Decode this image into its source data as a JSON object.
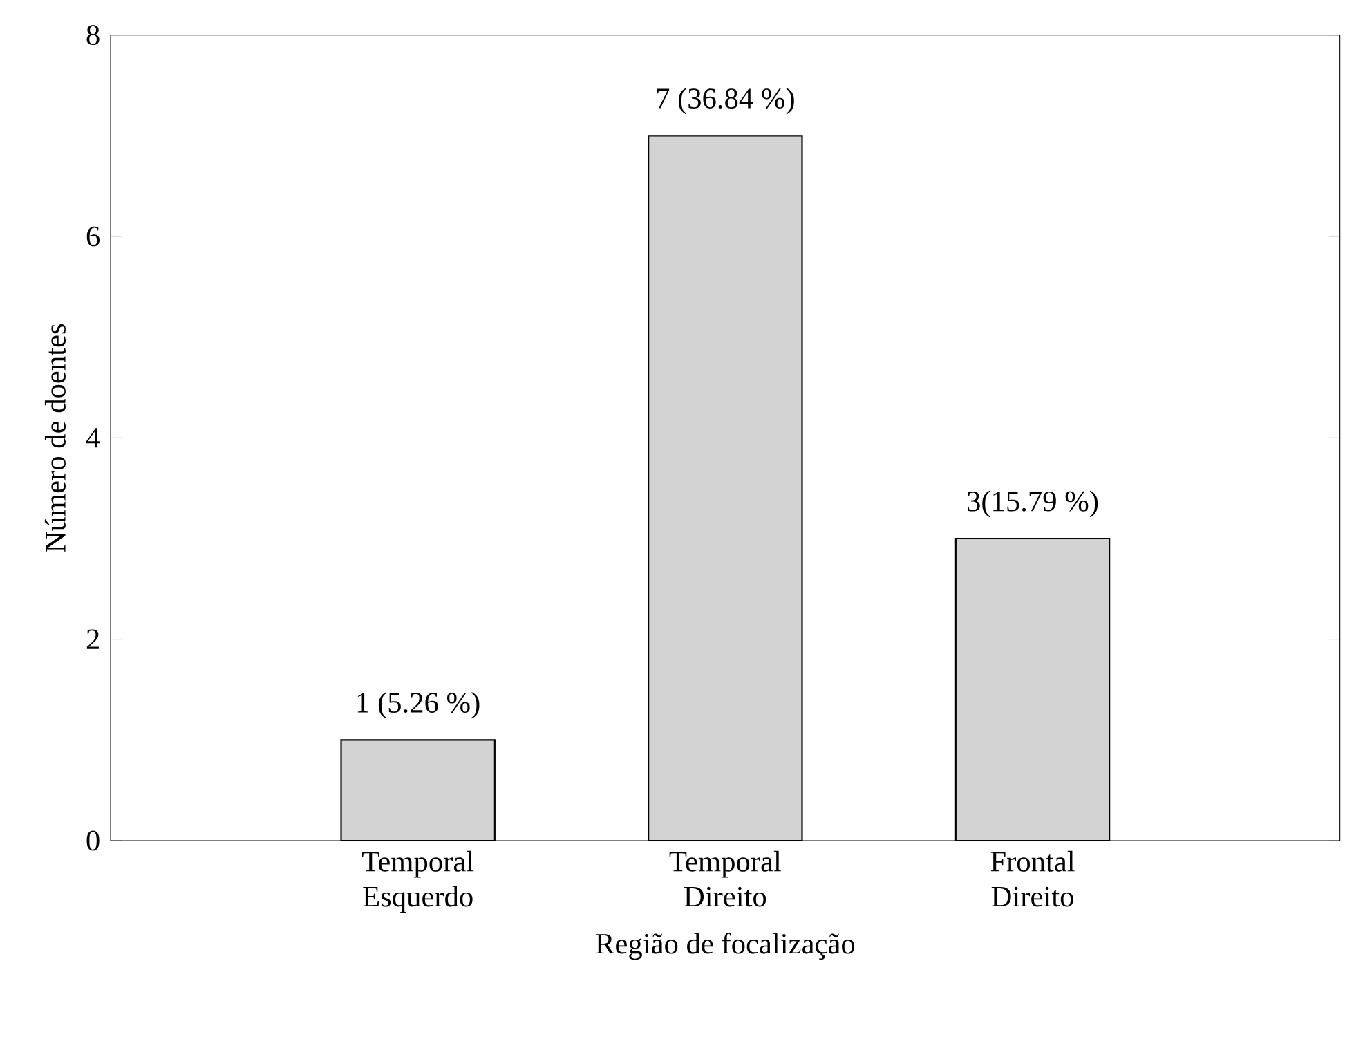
{
  "chart_data": {
    "type": "bar",
    "xlabel": "Região de focalização",
    "ylabel": "Número de doentes",
    "categories": [
      "Temporal Esquerdo",
      "Temporal Direito",
      "Frontal Direito"
    ],
    "values": [
      1,
      7,
      3
    ],
    "value_labels": [
      "1 (5.26 %)",
      "7 (36.84 %)",
      "3(15.79 %)"
    ],
    "color": "#d3d3d3",
    "ylim": [
      0,
      8
    ],
    "yticks": [
      0,
      2,
      4,
      6,
      8
    ]
  }
}
